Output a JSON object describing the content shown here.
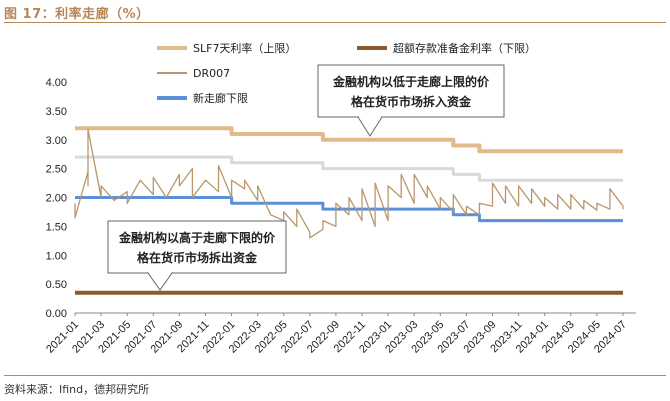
{
  "figure_title": "图 17：利率走廊（%）",
  "source": "资料来源：Ifind，德邦研究所",
  "callouts": {
    "upper": [
      "金融机构以低于走廊上限的价",
      "格在货币市场拆入资金"
    ],
    "lower": [
      "金融机构以高于走廊下限的价",
      "格在货币市场拆出资金"
    ]
  },
  "chart_data": {
    "type": "line",
    "title": "利率走廊（%）",
    "xlabel": "",
    "ylabel": "",
    "ylim": [
      0,
      4
    ],
    "yticks": [
      "0.00",
      "0.50",
      "1.00",
      "1.50",
      "2.00",
      "2.50",
      "3.00",
      "3.50",
      "4.00"
    ],
    "x_range": [
      "2021-01",
      "2024-08"
    ],
    "xticks": [
      "2021-01",
      "2021-03",
      "2021-05",
      "2021-07",
      "2021-09",
      "2021-11",
      "2022-01",
      "2022-03",
      "2022-05",
      "2022-07",
      "2022-09",
      "2022-11",
      "2023-01",
      "2023-03",
      "2023-05",
      "2023-07",
      "2023-09",
      "2023-11",
      "2024-01",
      "2024-03",
      "2024-05",
      "2024-07"
    ],
    "grid": false,
    "legend": "top",
    "series": [
      {
        "name": "SLF7天利率（上限）",
        "color": "#e2b98a",
        "step": true,
        "points": [
          [
            "2021-01",
            3.2
          ],
          [
            "2022-01",
            3.2
          ],
          [
            "2022-01",
            3.1
          ],
          [
            "2022-08",
            3.1
          ],
          [
            "2022-08",
            3.0
          ],
          [
            "2023-06",
            3.0
          ],
          [
            "2023-06",
            2.9
          ],
          [
            "2023-08",
            2.9
          ],
          [
            "2023-08",
            2.8
          ],
          [
            "2024-07",
            2.8
          ]
        ]
      },
      {
        "name": "超额存款准备金利率（下限）",
        "color": "#8b5a2b",
        "step": true,
        "points": [
          [
            "2021-01",
            0.35
          ],
          [
            "2024-07",
            0.35
          ]
        ]
      },
      {
        "name": "DR007",
        "color": "#b9976d",
        "step": false,
        "points": [
          [
            "2021-01",
            1.9
          ],
          [
            "2021-01",
            1.65
          ],
          [
            "2021-02",
            2.45
          ],
          [
            "2021-02",
            2.2
          ],
          [
            "2021-02",
            3.18
          ],
          [
            "2021-03",
            2.0
          ],
          [
            "2021-03",
            2.2
          ],
          [
            "2021-04",
            1.95
          ],
          [
            "2021-05",
            2.1
          ],
          [
            "2021-05",
            1.9
          ],
          [
            "2021-06",
            2.3
          ],
          [
            "2021-07",
            2.05
          ],
          [
            "2021-07",
            2.35
          ],
          [
            "2021-08",
            2.0
          ],
          [
            "2021-09",
            2.4
          ],
          [
            "2021-09",
            2.2
          ],
          [
            "2021-10",
            2.5
          ],
          [
            "2021-10",
            2.0
          ],
          [
            "2021-11",
            2.3
          ],
          [
            "2021-12",
            2.1
          ],
          [
            "2021-12",
            2.55
          ],
          [
            "2022-01",
            2.0
          ],
          [
            "2022-01",
            2.3
          ],
          [
            "2022-02",
            2.15
          ],
          [
            "2022-02",
            2.3
          ],
          [
            "2022-03",
            1.95
          ],
          [
            "2022-03",
            2.2
          ],
          [
            "2022-04",
            1.7
          ],
          [
            "2022-05",
            1.6
          ],
          [
            "2022-05",
            1.75
          ],
          [
            "2022-06",
            1.5
          ],
          [
            "2022-06",
            1.8
          ],
          [
            "2022-07",
            1.4
          ],
          [
            "2022-07",
            1.3
          ],
          [
            "2022-08",
            1.45
          ],
          [
            "2022-08",
            1.6
          ],
          [
            "2022-09",
            1.5
          ],
          [
            "2022-09",
            1.9
          ],
          [
            "2022-10",
            1.7
          ],
          [
            "2022-10",
            2.0
          ],
          [
            "2022-11",
            1.6
          ],
          [
            "2022-11",
            2.15
          ],
          [
            "2022-12",
            1.5
          ],
          [
            "2022-12",
            2.25
          ],
          [
            "2023-01",
            1.6
          ],
          [
            "2023-01",
            2.2
          ],
          [
            "2023-02",
            2.0
          ],
          [
            "2023-02",
            2.4
          ],
          [
            "2023-03",
            1.9
          ],
          [
            "2023-03",
            2.4
          ],
          [
            "2023-04",
            2.0
          ],
          [
            "2023-04",
            2.2
          ],
          [
            "2023-05",
            1.8
          ],
          [
            "2023-05",
            2.0
          ],
          [
            "2023-06",
            1.75
          ],
          [
            "2023-06",
            2.05
          ],
          [
            "2023-07",
            1.7
          ],
          [
            "2023-07",
            1.85
          ],
          [
            "2023-08",
            1.7
          ],
          [
            "2023-08",
            1.9
          ],
          [
            "2023-09",
            1.85
          ],
          [
            "2023-09",
            2.25
          ],
          [
            "2023-10",
            1.9
          ],
          [
            "2023-10",
            2.2
          ],
          [
            "2023-11",
            1.85
          ],
          [
            "2023-11",
            2.2
          ],
          [
            "2023-12",
            1.9
          ],
          [
            "2023-12",
            2.15
          ],
          [
            "2024-01",
            1.85
          ],
          [
            "2024-01",
            2.0
          ],
          [
            "2024-02",
            1.8
          ],
          [
            "2024-02",
            2.05
          ],
          [
            "2024-03",
            1.8
          ],
          [
            "2024-03",
            2.05
          ],
          [
            "2024-04",
            1.8
          ],
          [
            "2024-04",
            1.95
          ],
          [
            "2024-05",
            1.78
          ],
          [
            "2024-05",
            1.9
          ],
          [
            "2024-06",
            1.8
          ],
          [
            "2024-06",
            2.15
          ],
          [
            "2024-07",
            1.85
          ],
          [
            "2024-07",
            1.8
          ]
        ]
      },
      {
        "name": "新走廊下限",
        "color": "#5b8fd6",
        "step": true,
        "points": [
          [
            "2021-01",
            2.0
          ],
          [
            "2022-01",
            2.0
          ],
          [
            "2022-01",
            1.9
          ],
          [
            "2022-08",
            1.9
          ],
          [
            "2022-08",
            1.8
          ],
          [
            "2023-06",
            1.8
          ],
          [
            "2023-06",
            1.7
          ],
          [
            "2023-08",
            1.7
          ],
          [
            "2023-08",
            1.6
          ],
          [
            "2024-07",
            1.6
          ]
        ]
      },
      {
        "name": "",
        "color": "#d9d9d9",
        "step": true,
        "points": [
          [
            "2021-01",
            2.7
          ],
          [
            "2022-01",
            2.7
          ],
          [
            "2022-01",
            2.6
          ],
          [
            "2022-08",
            2.6
          ],
          [
            "2022-08",
            2.5
          ],
          [
            "2023-06",
            2.5
          ],
          [
            "2023-06",
            2.4
          ],
          [
            "2023-08",
            2.4
          ],
          [
            "2023-08",
            2.3
          ],
          [
            "2024-07",
            2.3
          ]
        ]
      }
    ]
  }
}
